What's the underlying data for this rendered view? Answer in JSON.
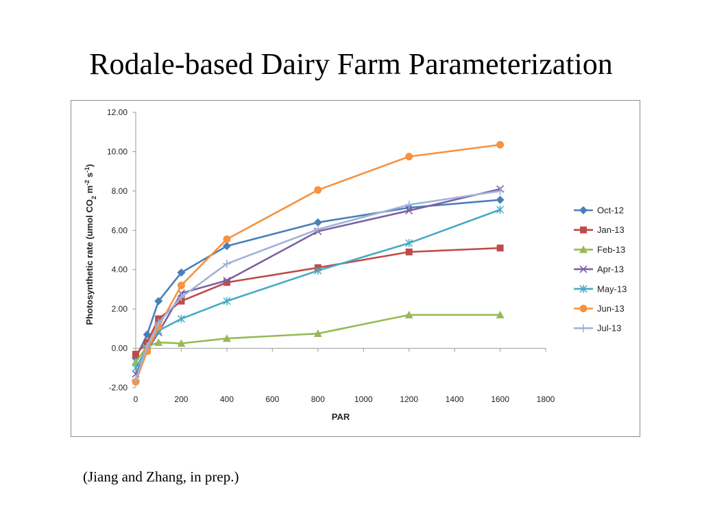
{
  "slide": {
    "title": "Rodale-based Dairy Farm Parameterization",
    "citation": "(Jiang and Zhang, in prep.)"
  },
  "chart_data": {
    "type": "line",
    "title": "",
    "xlabel": "PAR",
    "ylabel_parts": [
      "Photosynthetic rate (umol CO",
      "2",
      " m",
      "-2",
      " s",
      "-1",
      ")"
    ],
    "xlim": [
      0,
      1800
    ],
    "ylim": [
      -2,
      12
    ],
    "xticks": [
      0,
      200,
      400,
      600,
      800,
      1000,
      1200,
      1400,
      1600,
      1800
    ],
    "xtick_labels": [
      "0",
      "200",
      "400",
      "600",
      "800",
      "1000",
      "1200",
      "1400",
      "1600",
      "1800"
    ],
    "yticks": [
      -2,
      0,
      2,
      4,
      6,
      8,
      10,
      12
    ],
    "ytick_labels": [
      "-2.00",
      "0.00",
      "2.00",
      "4.00",
      "6.00",
      "8.00",
      "10.00",
      "12.00"
    ],
    "grid": false,
    "legend_position": "right",
    "x": [
      0,
      50,
      100,
      200,
      400,
      800,
      1200,
      1600
    ],
    "series": [
      {
        "name": "Oct-12",
        "color": "#4a7ebb",
        "marker": "diamond",
        "values": [
          -0.5,
          0.7,
          2.4,
          3.85,
          5.2,
          6.4,
          7.15,
          7.55
        ]
      },
      {
        "name": "Jan-13",
        "color": "#be4b48",
        "marker": "square",
        "values": [
          -0.3,
          0.3,
          1.5,
          2.4,
          3.35,
          4.1,
          4.9,
          5.1
        ]
      },
      {
        "name": "Feb-13",
        "color": "#98b954",
        "marker": "triangle",
        "values": [
          -0.7,
          0.1,
          0.3,
          0.25,
          0.5,
          0.75,
          1.7,
          1.7
        ]
      },
      {
        "name": "Apr-13",
        "color": "#7d60a0",
        "marker": "x",
        "values": [
          -1.3,
          -0.1,
          0.8,
          2.8,
          3.45,
          5.95,
          7.0,
          8.1
        ]
      },
      {
        "name": "May-13",
        "color": "#46aac5",
        "marker": "asterisk",
        "values": [
          -1.0,
          0.0,
          0.9,
          1.5,
          2.4,
          3.95,
          5.35,
          7.05
        ]
      },
      {
        "name": "Jun-13",
        "color": "#f69240",
        "marker": "circle",
        "values": [
          -1.7,
          -0.15,
          1.1,
          3.2,
          5.55,
          8.05,
          9.75,
          10.35
        ]
      },
      {
        "name": "Jul-13",
        "color": "#9eb3d8",
        "marker": "plus",
        "values": [
          -1.6,
          0.1,
          1.3,
          2.6,
          4.3,
          6.05,
          7.3,
          8.0
        ]
      }
    ]
  }
}
